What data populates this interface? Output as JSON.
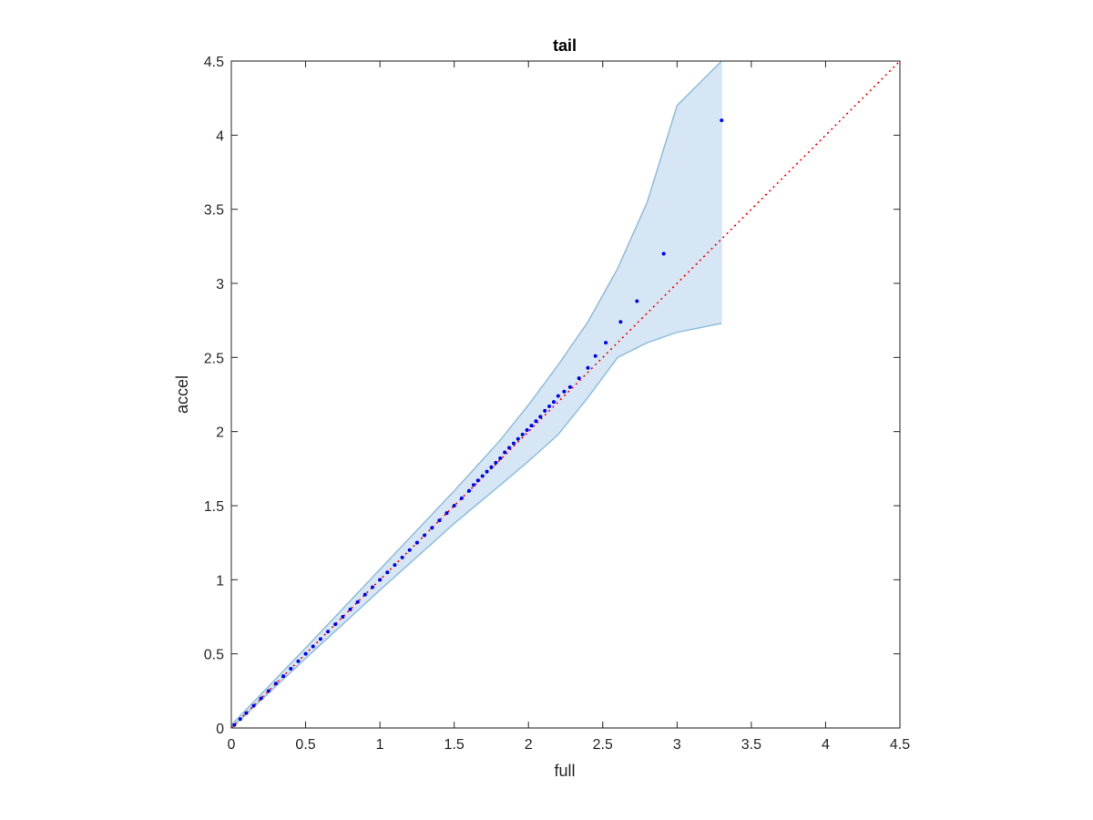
{
  "chart_data": {
    "type": "scatter",
    "title": "tail",
    "xlabel": "full",
    "ylabel": "accel",
    "xlim": [
      0,
      4.5
    ],
    "ylim": [
      0,
      4.5
    ],
    "xticks": [
      "0",
      "0.5",
      "1",
      "1.5",
      "2",
      "2.5",
      "3",
      "3.5",
      "4",
      "4.5"
    ],
    "yticks": [
      "0",
      "0.5",
      "1",
      "1.5",
      "2",
      "2.5",
      "3",
      "3.5",
      "4",
      "4.5"
    ],
    "grid": false,
    "colors": {
      "points": "#0000ff",
      "reference_line": "#ff0000",
      "band_fill": "#d6e6f4",
      "band_edge": "#8fbde0",
      "axes": "#262626"
    },
    "reference_line": {
      "x": [
        0,
        4.5
      ],
      "y": [
        0,
        4.5
      ],
      "style": "dotted"
    },
    "band": {
      "x": [
        0,
        0.5,
        1.0,
        1.5,
        1.8,
        2.0,
        2.2,
        2.4,
        2.6,
        2.8,
        3.0,
        3.3
      ],
      "upper": [
        0.02,
        0.54,
        1.07,
        1.6,
        1.93,
        2.18,
        2.45,
        2.74,
        3.1,
        3.55,
        4.2,
        4.5
      ],
      "lower": [
        0.0,
        0.47,
        0.93,
        1.38,
        1.63,
        1.8,
        1.98,
        2.23,
        2.5,
        2.6,
        2.67,
        2.73
      ]
    },
    "series": [
      {
        "x": [
          0.02,
          0.06,
          0.1,
          0.15,
          0.2,
          0.25,
          0.3,
          0.35,
          0.4,
          0.45,
          0.5,
          0.55,
          0.6,
          0.65,
          0.7,
          0.75,
          0.8,
          0.85,
          0.9,
          0.95,
          1.0,
          1.05,
          1.1,
          1.15,
          1.2,
          1.25,
          1.3,
          1.35,
          1.4,
          1.45,
          1.5,
          1.55,
          1.6,
          1.63,
          1.66,
          1.69,
          1.72,
          1.75,
          1.78,
          1.81,
          1.84,
          1.87,
          1.9,
          1.93,
          1.96,
          1.99,
          2.02,
          2.05,
          2.08,
          2.11,
          2.14,
          2.17,
          2.2,
          2.24,
          2.28,
          2.34,
          2.4,
          2.45,
          2.52,
          2.62,
          2.73,
          2.91,
          3.3
        ],
        "y": [
          0.02,
          0.06,
          0.1,
          0.15,
          0.2,
          0.25,
          0.3,
          0.35,
          0.4,
          0.45,
          0.5,
          0.55,
          0.6,
          0.65,
          0.7,
          0.75,
          0.8,
          0.85,
          0.9,
          0.95,
          1.0,
          1.05,
          1.1,
          1.15,
          1.2,
          1.25,
          1.3,
          1.35,
          1.4,
          1.45,
          1.5,
          1.55,
          1.6,
          1.64,
          1.67,
          1.7,
          1.73,
          1.76,
          1.79,
          1.82,
          1.86,
          1.89,
          1.92,
          1.95,
          1.98,
          2.01,
          2.04,
          2.07,
          2.1,
          2.14,
          2.17,
          2.2,
          2.24,
          2.27,
          2.3,
          2.36,
          2.43,
          2.51,
          2.6,
          2.74,
          2.88,
          3.2,
          4.1
        ]
      }
    ]
  }
}
